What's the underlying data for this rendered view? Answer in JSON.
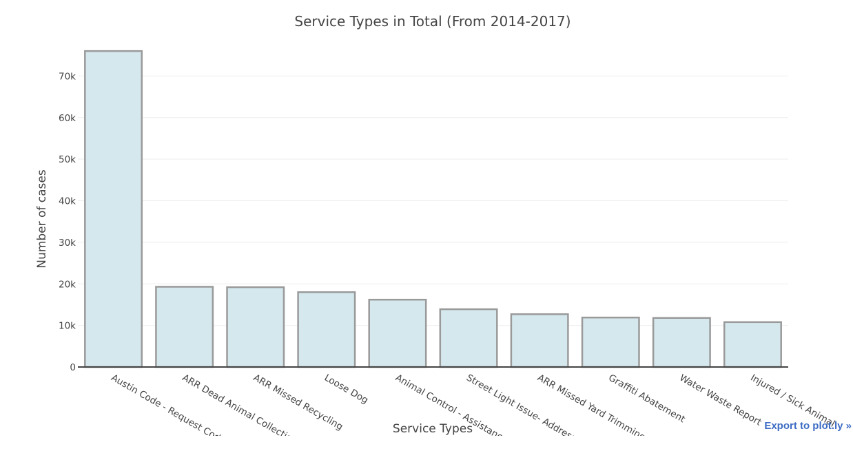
{
  "chart_data": {
    "type": "bar",
    "title": "Service Types in Total (From 2014-2017)",
    "xlabel": "Service Types",
    "ylabel": "Number of cases",
    "categories": [
      "Austin Code - Request Code",
      "ARR Dead Animal Collection",
      "ARR Missed Recycling",
      "Loose Dog",
      "Animal Control - Assistance",
      "Street Light Issue- Address",
      "ARR Missed Yard Trimmings",
      "Graffiti Abatement",
      "Water Waste Report",
      "Injured / Sick Animal"
    ],
    "values": [
      76000,
      19300,
      19200,
      18000,
      16200,
      13900,
      12700,
      11900,
      11800,
      10800
    ],
    "ylim": [
      0,
      80000
    ],
    "yticks": [
      0,
      10000,
      20000,
      30000,
      40000,
      50000,
      60000,
      70000
    ],
    "ytick_labels": [
      "0",
      "10k",
      "20k",
      "30k",
      "40k",
      "50k",
      "60k",
      "70k"
    ],
    "grid": true,
    "bar_fill": "#d4e8ee",
    "bar_stroke": "#9a9a9a",
    "grid_color": "#eeeeee",
    "axis_color": "#444444",
    "text_color": "#444444"
  },
  "export_link": {
    "label": "Export to plot.ly »",
    "color": "#3d6cc4"
  }
}
